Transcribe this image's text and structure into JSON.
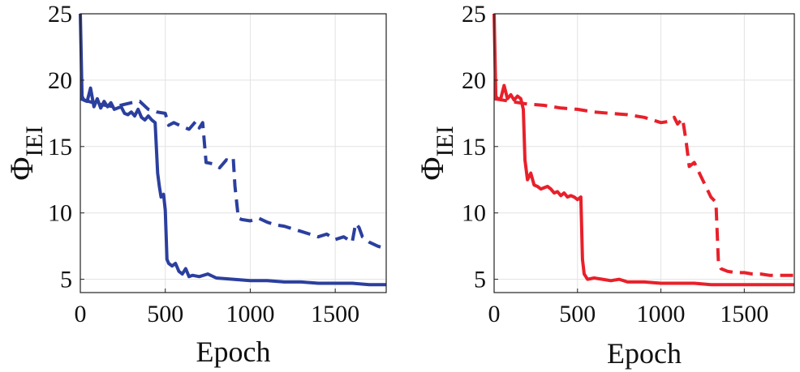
{
  "chart_data": [
    {
      "type": "line",
      "xlabel": "Epoch",
      "ylabel_symbol": "Φ",
      "ylabel_subscript": "IEI",
      "xlim": [
        0,
        1800
      ],
      "ylim": [
        4,
        25
      ],
      "xticks": [
        0,
        500,
        1000,
        1500
      ],
      "yticks": [
        5,
        10,
        15,
        20,
        25
      ],
      "grid": true,
      "color": "#2b3f9e",
      "series": [
        {
          "style": "solid",
          "x": [
            0,
            10,
            20,
            40,
            60,
            80,
            100,
            120,
            140,
            160,
            180,
            200,
            220,
            240,
            260,
            280,
            300,
            320,
            340,
            360,
            380,
            400,
            420,
            440,
            455,
            465,
            475,
            490,
            500,
            510,
            520,
            540,
            560,
            580,
            600,
            620,
            640,
            660,
            700,
            750,
            800,
            900,
            1000,
            1100,
            1200,
            1300,
            1400,
            1500,
            1600,
            1700,
            1800
          ],
          "y": [
            25,
            18.8,
            18.5,
            18.4,
            19.4,
            18.0,
            18.6,
            17.9,
            18.4,
            18.0,
            18.3,
            17.8,
            17.9,
            18.0,
            17.5,
            17.4,
            17.6,
            17.3,
            17.8,
            17.2,
            17.0,
            17.3,
            17.0,
            16.8,
            13.0,
            12.0,
            11.2,
            11.4,
            10.2,
            6.5,
            6.2,
            6.0,
            6.2,
            5.6,
            5.4,
            5.8,
            5.2,
            5.3,
            5.2,
            5.4,
            5.1,
            5.0,
            4.9,
            4.9,
            4.8,
            4.8,
            4.7,
            4.7,
            4.7,
            4.6,
            4.6
          ]
        },
        {
          "style": "dashed",
          "x": [
            0,
            100,
            200,
            300,
            350,
            400,
            450,
            500,
            520,
            550,
            600,
            640,
            680,
            700,
            720,
            740,
            780,
            820,
            860,
            880,
            900,
            910,
            930,
            950,
            1000,
            1050,
            1100,
            1150,
            1200,
            1250,
            1300,
            1350,
            1400,
            1450,
            1500,
            1550,
            1600,
            1620,
            1640,
            1660,
            1700,
            1750,
            1800
          ],
          "y": [
            18.6,
            18.2,
            18.0,
            18.3,
            18.4,
            17.8,
            17.6,
            17.5,
            16.6,
            16.8,
            16.5,
            16.3,
            16.9,
            16.4,
            16.8,
            13.8,
            13.7,
            13.4,
            14.0,
            13.9,
            14.1,
            12.0,
            9.6,
            9.5,
            9.4,
            9.6,
            9.3,
            9.1,
            9.0,
            8.8,
            8.6,
            8.4,
            8.2,
            8.4,
            8.0,
            8.2,
            7.8,
            9.2,
            8.9,
            8.2,
            7.8,
            7.5,
            7.3
          ]
        }
      ]
    },
    {
      "type": "line",
      "xlabel": "Epoch",
      "ylabel_symbol": "Φ",
      "ylabel_subscript": "IEI",
      "xlim": [
        0,
        1800
      ],
      "ylim": [
        4,
        25
      ],
      "xticks": [
        0,
        500,
        1000,
        1500
      ],
      "yticks": [
        5,
        10,
        15,
        20,
        25
      ],
      "grid": true,
      "color": "#e8202a",
      "series": [
        {
          "style": "solid",
          "x": [
            0,
            10,
            20,
            40,
            60,
            80,
            100,
            120,
            140,
            160,
            175,
            185,
            200,
            220,
            240,
            260,
            280,
            300,
            320,
            340,
            360,
            380,
            400,
            420,
            440,
            460,
            480,
            500,
            520,
            530,
            540,
            560,
            600,
            650,
            700,
            750,
            800,
            900,
            1000,
            1100,
            1200,
            1300,
            1400,
            1500,
            1600,
            1700,
            1800
          ],
          "y": [
            25,
            18.8,
            18.6,
            18.6,
            19.6,
            18.6,
            18.9,
            18.5,
            18.8,
            18.6,
            17.8,
            14.0,
            12.5,
            13.0,
            12.1,
            12.0,
            11.8,
            11.9,
            12.0,
            11.8,
            11.5,
            11.6,
            11.3,
            11.5,
            11.2,
            11.3,
            11.2,
            11.0,
            11.2,
            6.5,
            5.4,
            5.0,
            5.1,
            5.0,
            4.9,
            5.0,
            4.8,
            4.8,
            4.7,
            4.7,
            4.7,
            4.6,
            4.6,
            4.6,
            4.6,
            4.6,
            4.6
          ]
        },
        {
          "style": "dashed",
          "x": [
            0,
            100,
            200,
            300,
            400,
            500,
            600,
            700,
            800,
            900,
            950,
            1000,
            1050,
            1080,
            1100,
            1130,
            1150,
            1170,
            1200,
            1250,
            1300,
            1330,
            1345,
            1360,
            1400,
            1450,
            1500,
            1550,
            1600,
            1650,
            1700,
            1750,
            1800
          ],
          "y": [
            18.6,
            18.4,
            18.2,
            18.1,
            17.9,
            17.8,
            17.6,
            17.5,
            17.4,
            17.2,
            17.0,
            16.8,
            16.9,
            17.2,
            16.7,
            17.1,
            15.5,
            13.5,
            13.8,
            12.5,
            11.2,
            10.8,
            6.2,
            5.8,
            5.6,
            5.5,
            5.5,
            5.4,
            5.4,
            5.3,
            5.3,
            5.3,
            5.3
          ]
        }
      ]
    }
  ]
}
